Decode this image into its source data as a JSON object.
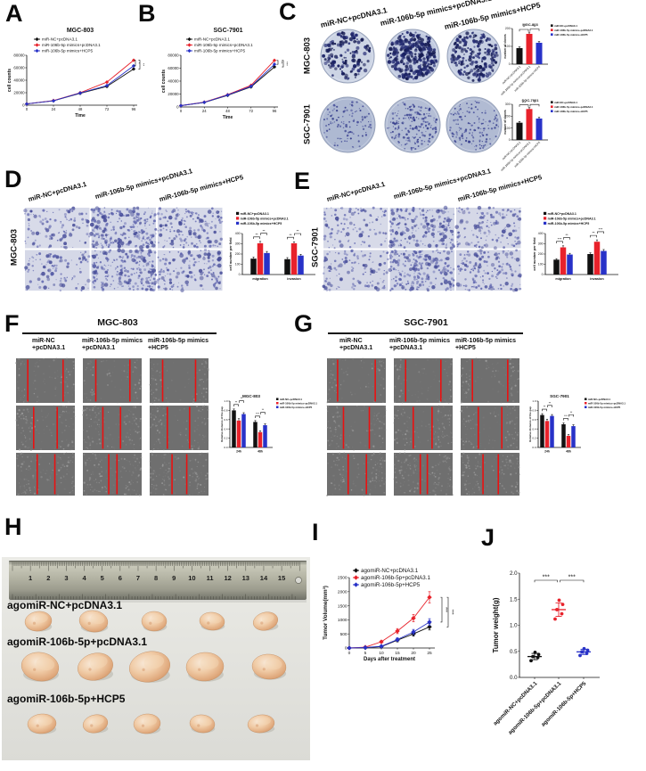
{
  "colors": {
    "black": "#111111",
    "red": "#e8222b",
    "blue": "#2832c8",
    "wound_line": "#ea1111"
  },
  "panels": {
    "A": {
      "letter": "A"
    },
    "B": {
      "letter": "B"
    },
    "C": {
      "letter": "C",
      "col_labels": [
        "miR-NC+pcDNA3.1",
        "miR-106b-5p mimics+pcDNA3.1",
        "miR-106b-5p mimics+HCP5"
      ],
      "row_labels": [
        "MGC-803",
        "SGC-7901"
      ]
    },
    "D": {
      "letter": "D",
      "row_label": "MGC-803",
      "col_labels": [
        "miR-NC+pcDNA3.1",
        "miR-106b-5p mimics+pcDNA3.1",
        "miR-106b-5p mimics+HCP5"
      ]
    },
    "E": {
      "letter": "E",
      "row_label": "SGC-7901",
      "col_labels": [
        "miR-NC+pcDNA3.1",
        "miR-106b-5p mimics+pcDNA3.1",
        "miR-106b-5p mimics+HCP5"
      ]
    },
    "F": {
      "letter": "F",
      "title": "MGC-803",
      "col_labels": [
        {
          "l1": "miR-NC",
          "l2": "+pcDNA3.1"
        },
        {
          "l1": "miR-106b-5p mimics",
          "l2": "+pcDNA3.1"
        },
        {
          "l1": "miR-106b-5p mimics",
          "l2": "+HCP5"
        }
      ]
    },
    "G": {
      "letter": "G",
      "title": "SGC-7901",
      "col_labels": [
        {
          "l1": "miR-NC",
          "l2": "+pcDNA3.1"
        },
        {
          "l1": "miR-106b-5p mimics",
          "l2": "+pcDNA3.1"
        },
        {
          "l1": "miR-106b-5p mimics",
          "l2": "+HCP5"
        }
      ]
    },
    "H": {
      "letter": "H",
      "group_labels": [
        "agomiR-NC+pcDNA3.1",
        "agomiR-106b-5p+pcDNA3.1",
        "agomiR-106b-5p+HCP5"
      ],
      "ruler_numbers": [
        1,
        2,
        3,
        4,
        5,
        6,
        7,
        8,
        9,
        10,
        11,
        12,
        13,
        14,
        15
      ]
    },
    "I": {
      "letter": "I"
    },
    "J": {
      "letter": "J"
    }
  },
  "chart_data": [
    {
      "id": "A",
      "type": "line",
      "title": "MGC-803",
      "xlabel": "Time",
      "ylabel": "cell counts",
      "x": [
        0,
        24,
        48,
        72,
        96
      ],
      "xlim": [
        0,
        96
      ],
      "ylim": [
        0,
        80000
      ],
      "yticks": [
        0,
        20000,
        40000,
        60000,
        80000
      ],
      "series": [
        {
          "name": "miR-NC+pcDNA3.1",
          "color": "black",
          "values": [
            2000,
            7000,
            19000,
            30000,
            58000
          ]
        },
        {
          "name": "miR-106b-5p mimics+pcDNA3.1",
          "color": "red",
          "values": [
            2000,
            7500,
            20000,
            37000,
            72000
          ]
        },
        {
          "name": "miR-106b-5p mimics+HCP5",
          "color": "blue",
          "values": [
            2000,
            7000,
            19500,
            31500,
            63000
          ]
        }
      ],
      "sig": [
        "*",
        "**"
      ]
    },
    {
      "id": "B",
      "type": "line",
      "title": "SGC-7901",
      "xlabel": "Time",
      "ylabel": "cell counts",
      "x": [
        0,
        24,
        48,
        72,
        96
      ],
      "xlim": [
        0,
        96
      ],
      "ylim": [
        0,
        80000
      ],
      "yticks": [
        0,
        20000,
        40000,
        60000,
        80000
      ],
      "series": [
        {
          "name": "miR-NC+pcDNA3.1",
          "color": "black",
          "values": [
            2000,
            7000,
            18000,
            31000,
            62000
          ]
        },
        {
          "name": "miR-106b-5p mimics+pcDNA3.1",
          "color": "red",
          "values": [
            2000,
            7500,
            19000,
            33500,
            72000
          ]
        },
        {
          "name": "miR-106b-5p mimics+HCP5",
          "color": "blue",
          "values": [
            2000,
            7200,
            18500,
            32000,
            66000
          ]
        }
      ],
      "sig": [
        "**",
        "***"
      ]
    },
    {
      "id": "C1",
      "type": "bar",
      "title": "MGC-803",
      "ylabel": "number of clones",
      "categories": [
        "miR-NC+pcDNA3.1",
        "miR-106b-5p mimics+pcDNA3.1",
        "miR-106b-5p mimics+HCP5"
      ],
      "values": [
        90,
        170,
        120
      ],
      "errors": [
        7,
        10,
        7
      ],
      "bar_colors": [
        "black",
        "red",
        "blue"
      ],
      "ylim": [
        0,
        200
      ],
      "yticks": [
        0,
        100,
        200
      ],
      "legend": [
        "miR-NC+pcDNA3.1",
        "miR-106b-5p mimics+pcDNA3.1",
        "miR-106b-5p mimics+HCP5"
      ],
      "sig": [
        {
          "from": 0,
          "to": 1,
          "label": "**"
        },
        {
          "from": 1,
          "to": 2,
          "label": "**"
        }
      ]
    },
    {
      "id": "C2",
      "type": "bar",
      "title": "SGC-7901",
      "ylabel": "number of clones",
      "categories": [
        "miR-NC+pcDNA3.1",
        "miR-106b-5p mimics+pcDNA3.1",
        "miR-106b-5p mimics+HCP5"
      ],
      "values": [
        145,
        260,
        180
      ],
      "errors": [
        10,
        12,
        10
      ],
      "bar_colors": [
        "black",
        "red",
        "blue"
      ],
      "ylim": [
        0,
        300
      ],
      "yticks": [
        0,
        100,
        200,
        300
      ],
      "legend": [
        "miR-NC+pcDNA3.1",
        "miR-106b-5p mimics+pcDNA3.1",
        "miR-106b-5p mimics+HCP5"
      ],
      "sig": [
        {
          "from": 0,
          "to": 1,
          "label": "***"
        },
        {
          "from": 1,
          "to": 2,
          "label": "**"
        }
      ]
    },
    {
      "id": "D",
      "type": "grouped_bar",
      "ylabel": "cell number per field",
      "categories": [
        "migration",
        "invasion"
      ],
      "series": [
        {
          "name": "miR-NC+pcDNA3.1",
          "color": "black",
          "values": [
            155,
            150
          ],
          "errors": [
            15,
            15
          ]
        },
        {
          "name": "miR-106b-5p mimics+pcDNA3.1",
          "color": "red",
          "values": [
            305,
            305
          ],
          "errors": [
            18,
            15
          ]
        },
        {
          "name": "miR-106b-5p mimics+HCP5",
          "color": "blue",
          "values": [
            210,
            185
          ],
          "errors": [
            15,
            12
          ]
        }
      ],
      "ylim": [
        0,
        400
      ],
      "yticks": [
        0,
        100,
        200,
        300,
        400
      ],
      "sig": [
        [
          "**",
          "**"
        ],
        [
          "**",
          "**"
        ]
      ]
    },
    {
      "id": "E",
      "type": "grouped_bar",
      "ylabel": "cell number per field",
      "categories": [
        "migration",
        "invasion"
      ],
      "series": [
        {
          "name": "miR-NC+pcDNA3.1",
          "color": "black",
          "values": [
            145,
            200
          ],
          "errors": [
            10,
            12
          ]
        },
        {
          "name": "miR-106b-5p mimics+pcDNA3.1",
          "color": "red",
          "values": [
            265,
            320
          ],
          "errors": [
            15,
            18
          ]
        },
        {
          "name": "miR-106b-5p mimics+HCP5",
          "color": "blue",
          "values": [
            195,
            230
          ],
          "errors": [
            12,
            14
          ]
        }
      ],
      "ylim": [
        0,
        400
      ],
      "yticks": [
        0,
        100,
        200,
        300,
        400
      ],
      "sig": [
        [
          "***",
          "**"
        ],
        [
          "**",
          "***"
        ]
      ]
    },
    {
      "id": "F",
      "type": "grouped_bar",
      "title": "MGC-803",
      "ylabel": "Relative distance of the gap",
      "categories": [
        "24h",
        "48h"
      ],
      "series": [
        {
          "name": "miR-NC+pcDNA3.1",
          "color": "black",
          "values": [
            0.8,
            0.55
          ],
          "errors": [
            0.03,
            0.03
          ]
        },
        {
          "name": "miR-106b-5p mimics+pcDNA3.1",
          "color": "red",
          "values": [
            0.58,
            0.33
          ],
          "errors": [
            0.04,
            0.03
          ]
        },
        {
          "name": "miR-106b-5p mimics+HCP5",
          "color": "blue",
          "values": [
            0.72,
            0.48
          ],
          "errors": [
            0.03,
            0.03
          ]
        }
      ],
      "ylim": [
        0,
        1.0
      ],
      "yticks": [
        0,
        0.2,
        0.4,
        0.6,
        0.8,
        1.0
      ],
      "sig": [
        [
          "**",
          "**"
        ],
        [
          "***",
          "**"
        ]
      ]
    },
    {
      "id": "G",
      "type": "grouped_bar",
      "title": "SGC-7901",
      "ylabel": "Relative distance of the gap",
      "categories": [
        "24h",
        "48h"
      ],
      "series": [
        {
          "name": "miR-NC+pcDNA3.1",
          "color": "black",
          "values": [
            0.7,
            0.5
          ],
          "errors": [
            0.03,
            0.03
          ]
        },
        {
          "name": "miR-106b-5p mimics+pcDNA3.1",
          "color": "red",
          "values": [
            0.57,
            0.25
          ],
          "errors": [
            0.04,
            0.03
          ]
        },
        {
          "name": "miR-106b-5p mimics+HCP5",
          "color": "blue",
          "values": [
            0.68,
            0.46
          ],
          "errors": [
            0.03,
            0.03
          ]
        }
      ],
      "ylim": [
        0,
        1.0
      ],
      "yticks": [
        0,
        0.2,
        0.4,
        0.6,
        0.8,
        1.0
      ],
      "sig": [
        [
          "**",
          "**"
        ],
        [
          "***",
          "**"
        ]
      ]
    },
    {
      "id": "I",
      "type": "line",
      "ylabel": "Tumor Volume(mm³)",
      "xlabel": "Days after treatment",
      "x": [
        0,
        5,
        10,
        15,
        20,
        25
      ],
      "xlim": [
        0,
        25
      ],
      "ylim": [
        0,
        2500
      ],
      "yticks": [
        0,
        500,
        1000,
        1500,
        2000,
        2500
      ],
      "series": [
        {
          "name": "agomiR-NC+pcDNA3.1",
          "color": "black",
          "values": [
            0,
            10,
            50,
            280,
            500,
            750
          ],
          "errors": [
            0,
            10,
            25,
            60,
            80,
            110
          ]
        },
        {
          "name": "agomiR-106b-5p+pcDNA3.1",
          "color": "red",
          "values": [
            0,
            30,
            220,
            600,
            1060,
            1800
          ],
          "errors": [
            0,
            15,
            40,
            90,
            130,
            200
          ]
        },
        {
          "name": "agomiR-106b-5p+HCP5",
          "color": "blue",
          "values": [
            0,
            15,
            60,
            300,
            570,
            920
          ],
          "errors": [
            0,
            10,
            25,
            60,
            90,
            120
          ]
        }
      ],
      "sig": [
        "***",
        "***"
      ]
    },
    {
      "id": "J",
      "type": "scatter",
      "ylabel": "Tumor weight(g)",
      "categories": [
        "agomiR-NC+pcDNA3.1",
        "agomiR-106b-5p+pcDNA3.1",
        "agomiR-106b-5p+HCP5"
      ],
      "groups": [
        {
          "color": "black",
          "points": [
            0.32,
            0.38,
            0.4,
            0.44,
            0.48
          ],
          "mean": 0.4,
          "sd": 0.06
        },
        {
          "color": "red",
          "points": [
            1.12,
            1.22,
            1.3,
            1.4,
            1.48
          ],
          "mean": 1.3,
          "sd": 0.13
        },
        {
          "color": "blue",
          "points": [
            0.42,
            0.46,
            0.49,
            0.52,
            0.55
          ],
          "mean": 0.49,
          "sd": 0.05
        }
      ],
      "ylim": [
        0,
        2.0
      ],
      "yticks": [
        0,
        0.5,
        1.0,
        1.5,
        2.0
      ],
      "ytick_labels": [
        "0.0",
        "0.5",
        "1.0",
        "1.5",
        "2.0"
      ],
      "sig": [
        {
          "from": 0,
          "to": 1,
          "label": "***"
        },
        {
          "from": 1,
          "to": 2,
          "label": "***"
        }
      ]
    }
  ]
}
